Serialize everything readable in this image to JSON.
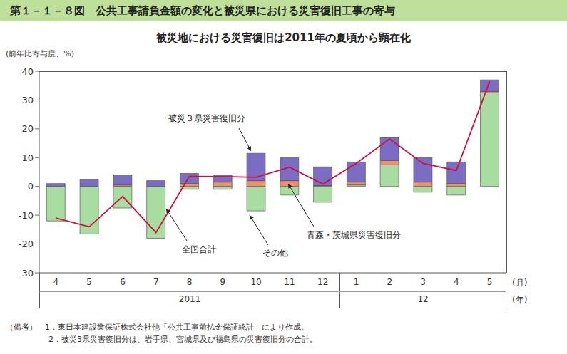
{
  "chart_data": {
    "type": "bar",
    "stacked": true,
    "title": "第１－１－８図　公共工事請負金額の変化と被災県における災害復旧工事の寄与",
    "subtitle": "被災地における災害復旧は2011年の夏頃から顕在化",
    "y_label": "(前年比寄与度、%)",
    "x_label": "(月)",
    "x_group_label": "(年)",
    "categories": [
      "4",
      "5",
      "6",
      "7",
      "8",
      "9",
      "10",
      "11",
      "12",
      "1",
      "2",
      "3",
      "4",
      "5"
    ],
    "years": [
      {
        "label": "2011",
        "count": 9
      },
      {
        "label": "12",
        "count": 5
      }
    ],
    "series": [
      {
        "name": "その他",
        "type": "bar",
        "color": "#a8dca0",
        "values": [
          -12,
          -16.5,
          -7.5,
          -18,
          -1,
          -1,
          -8.5,
          -3,
          -5.5,
          0.5,
          7.5,
          -2,
          -3,
          32.5
        ]
      },
      {
        "name": "青森・茨城県災害復旧分",
        "type": "bar",
        "color": "#f0906a",
        "values": [
          0,
          0,
          0.5,
          0,
          1,
          1.5,
          2,
          2,
          0.3,
          1,
          1.5,
          1.5,
          1,
          0.5
        ]
      },
      {
        "name": "被災３県災害復旧分",
        "type": "bar",
        "color": "#7b6cc4",
        "values": [
          1,
          2.5,
          3.5,
          2,
          3.5,
          2.5,
          9.5,
          8,
          6.5,
          7,
          8,
          8.5,
          7.5,
          4
        ]
      },
      {
        "name": "全国合計",
        "type": "line",
        "color": "#d0103a",
        "values": [
          -11,
          -14,
          -3.5,
          -16,
          3.5,
          3.4,
          3.2,
          6.7,
          0.8,
          8,
          16.5,
          8,
          5.5,
          36.5
        ]
      }
    ],
    "ylim": [
      -30,
      40
    ],
    "yticks": [
      -30,
      -20,
      -10,
      0,
      10,
      20,
      30,
      40
    ],
    "grid": false,
    "legend": false,
    "notes": [
      "（備考）　1．東日本建設業保証株式会社他「公共工事前払金保証統計」により作成。",
      "2．被災3県災害復旧分は、岩手県、宮城県及び福島県の災害復旧分の合計。"
    ]
  }
}
